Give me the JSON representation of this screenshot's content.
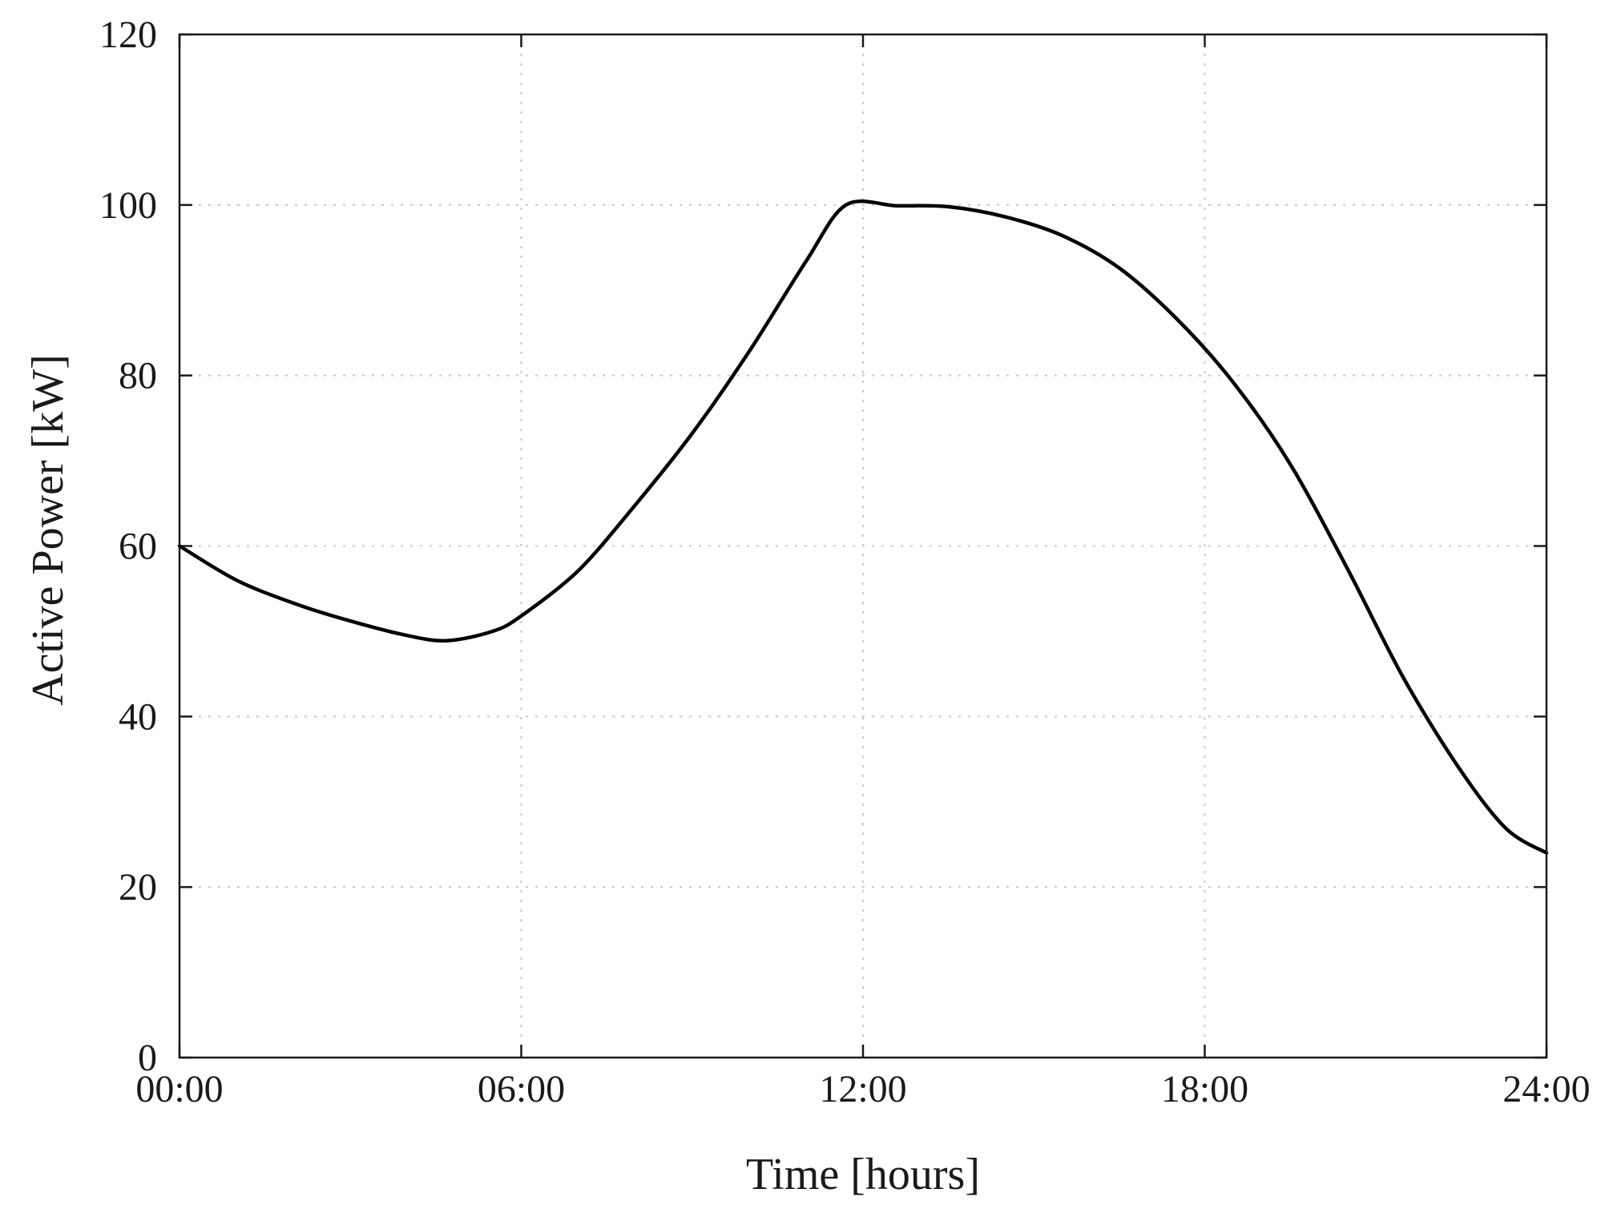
{
  "chart_data": {
    "type": "line",
    "title": "",
    "xlabel": "Time [hours]",
    "ylabel": "Active Power [kW]",
    "xlim": [
      0,
      24
    ],
    "ylim": [
      0,
      120
    ],
    "x_ticks": [
      {
        "value": 0,
        "label": "00:00"
      },
      {
        "value": 6,
        "label": "06:00"
      },
      {
        "value": 12,
        "label": "12:00"
      },
      {
        "value": 18,
        "label": "18:00"
      },
      {
        "value": 24,
        "label": "24:00"
      }
    ],
    "y_ticks": [
      {
        "value": 0,
        "label": "0"
      },
      {
        "value": 20,
        "label": "20"
      },
      {
        "value": 40,
        "label": "40"
      },
      {
        "value": 60,
        "label": "60"
      },
      {
        "value": 80,
        "label": "80"
      },
      {
        "value": 100,
        "label": "100"
      },
      {
        "value": 120,
        "label": "120"
      }
    ],
    "grid": true,
    "line_color": "#000000",
    "grid_color": "#c8c8c8",
    "series": [
      {
        "x": [
          0,
          1,
          2,
          3,
          4,
          4.7,
          5.5,
          6,
          7,
          8,
          9,
          10,
          11,
          11.7,
          12.6,
          13.5,
          14.5,
          15.5,
          16.5,
          17.5,
          18.5,
          19.5,
          20.5,
          21.5,
          22.5,
          23.3,
          24
        ],
        "y": [
          60,
          56,
          53.3,
          51.2,
          49.5,
          48.9,
          50,
          51.8,
          57.1,
          64.8,
          73.2,
          82.8,
          93.4,
          100,
          99.9,
          99.8,
          98.6,
          96.4,
          92.6,
          86.7,
          79.2,
          69.6,
          57.4,
          44.4,
          33.6,
          26.8,
          24
        ]
      }
    ]
  }
}
